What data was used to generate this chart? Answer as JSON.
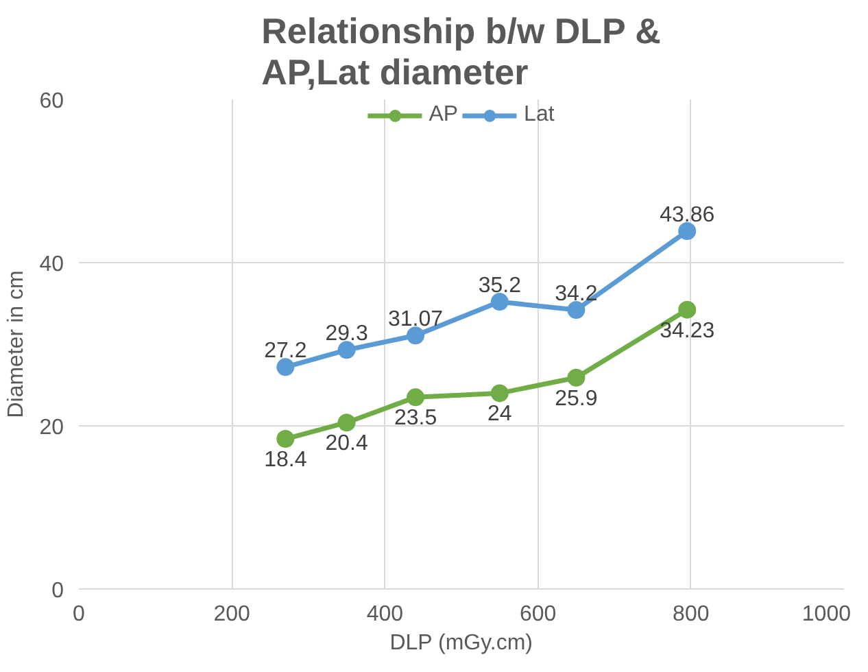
{
  "chart_data": {
    "type": "line",
    "title": "Relationship b/w DLP & AP,Lat diameter",
    "xlabel": "DLP (mGy.cm)",
    "ylabel": "Diameter in cm",
    "x": [
      270,
      350,
      440,
      550,
      650,
      795
    ],
    "series": [
      {
        "name": "AP",
        "color": "#70ad47",
        "values": [
          18.4,
          20.4,
          23.5,
          24,
          25.9,
          34.23
        ]
      },
      {
        "name": "Lat",
        "color": "#5b9bd5",
        "values": [
          27.2,
          29.3,
          31.07,
          35.2,
          34.2,
          43.86
        ]
      }
    ],
    "xlim": [
      0,
      1000
    ],
    "xticks": [
      0,
      200,
      400,
      600,
      800,
      1000
    ],
    "ylim": [
      0,
      60
    ],
    "yticks": [
      0,
      20,
      40,
      60
    ],
    "grid": true,
    "legend": "top",
    "marker": "circle",
    "line_style": "solid",
    "data_labels": true
  }
}
